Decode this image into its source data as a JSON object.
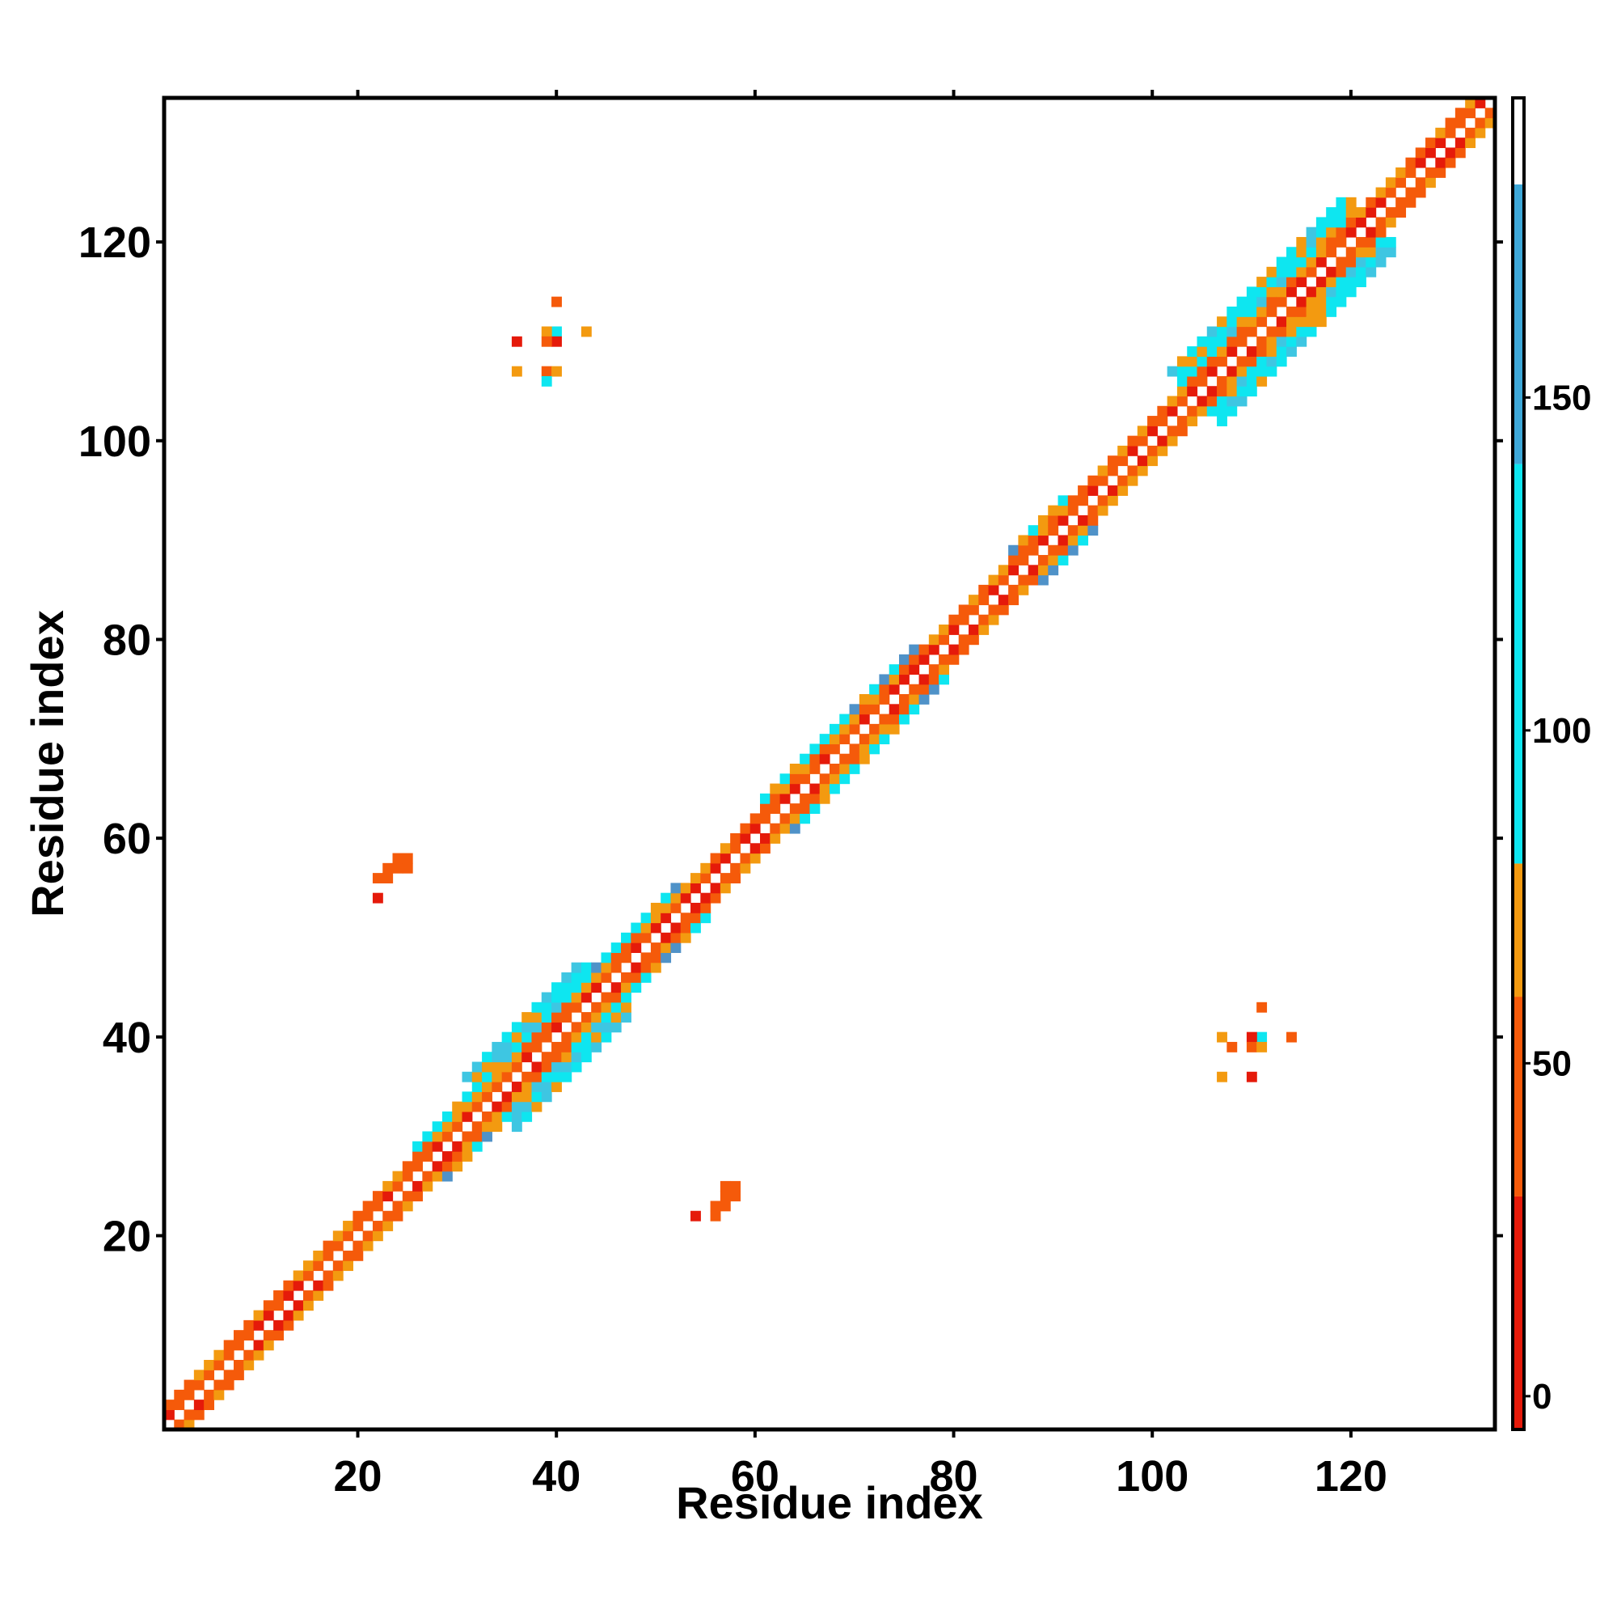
{
  "chart_data": {
    "type": "heatmap",
    "xlabel": "Residue index",
    "ylabel": "Residue index",
    "xlim": [
      1,
      134
    ],
    "ylim": [
      1,
      134
    ],
    "x_ticks": [
      20,
      40,
      60,
      80,
      100,
      120
    ],
    "y_ticks": [
      20,
      40,
      60,
      80,
      100,
      120
    ],
    "colorbar": {
      "range": [
        -5,
        195
      ],
      "ticks": [
        0,
        50,
        100,
        150
      ],
      "bands": [
        {
          "from": -5,
          "to": 30,
          "color": "#e51a0a"
        },
        {
          "from": 30,
          "to": 60,
          "color": "#f55a0a"
        },
        {
          "from": 60,
          "to": 80,
          "color": "#f39a10"
        },
        {
          "from": 80,
          "to": 140,
          "color": "#0ee6f0"
        },
        {
          "from": 140,
          "to": 182,
          "color": "#3ea8d8"
        },
        {
          "from": 182,
          "to": 195,
          "color": "#ffffff"
        }
      ]
    },
    "colors": {
      "red": "#e51a0a",
      "orange_red": "#f55a0a",
      "orange": "#f39a10",
      "cyan": "#0ee6f0",
      "sky": "#3ec6e2",
      "steel": "#4f92c8"
    },
    "diagonal_band": {
      "segments": [
        {
          "from": 1,
          "to": 10,
          "half_width": 2
        },
        {
          "from": 10,
          "to": 18,
          "half_width": 2
        },
        {
          "from": 18,
          "to": 27,
          "half_width": 2
        },
        {
          "from": 27,
          "to": 33,
          "half_width": 3
        },
        {
          "from": 33,
          "to": 45,
          "half_width": 5
        },
        {
          "from": 45,
          "to": 54,
          "half_width": 3
        },
        {
          "from": 54,
          "to": 62,
          "half_width": 2
        },
        {
          "from": 62,
          "to": 70,
          "half_width": 3
        },
        {
          "from": 70,
          "to": 78,
          "half_width": 3
        },
        {
          "from": 78,
          "to": 87,
          "half_width": 2
        },
        {
          "from": 87,
          "to": 93,
          "half_width": 3
        },
        {
          "from": 93,
          "to": 104,
          "half_width": 2
        },
        {
          "from": 104,
          "to": 122,
          "half_width": 5
        },
        {
          "from": 122,
          "to": 134,
          "half_width": 2
        }
      ]
    },
    "contacts": [
      {
        "x": 22,
        "y": 56,
        "v": 40
      },
      {
        "x": 23,
        "y": 56,
        "v": 40
      },
      {
        "x": 24,
        "y": 57,
        "v": 40
      },
      {
        "x": 23,
        "y": 57,
        "v": 40
      },
      {
        "x": 25,
        "y": 58,
        "v": 40
      },
      {
        "x": 24,
        "y": 58,
        "v": 40
      },
      {
        "x": 22,
        "y": 54,
        "v": 20
      },
      {
        "x": 25,
        "y": 57,
        "v": 45
      },
      {
        "x": 56,
        "y": 22,
        "v": 40
      },
      {
        "x": 56,
        "y": 23,
        "v": 40
      },
      {
        "x": 57,
        "y": 24,
        "v": 40
      },
      {
        "x": 57,
        "y": 23,
        "v": 40
      },
      {
        "x": 58,
        "y": 25,
        "v": 40
      },
      {
        "x": 58,
        "y": 24,
        "v": 40
      },
      {
        "x": 54,
        "y": 22,
        "v": 20
      },
      {
        "x": 57,
        "y": 25,
        "v": 45
      },
      {
        "x": 40,
        "y": 114,
        "v": 45
      },
      {
        "x": 40,
        "y": 111,
        "v": 110
      },
      {
        "x": 39,
        "y": 111,
        "v": 65
      },
      {
        "x": 40,
        "y": 110,
        "v": 10
      },
      {
        "x": 39,
        "y": 110,
        "v": 45
      },
      {
        "x": 36,
        "y": 110,
        "v": 10
      },
      {
        "x": 43,
        "y": 111,
        "v": 70
      },
      {
        "x": 36,
        "y": 107,
        "v": 70
      },
      {
        "x": 39,
        "y": 107,
        "v": 45
      },
      {
        "x": 40,
        "y": 107,
        "v": 70
      },
      {
        "x": 39,
        "y": 106,
        "v": 110
      },
      {
        "x": 111,
        "y": 43,
        "v": 45
      },
      {
        "x": 111,
        "y": 40,
        "v": 110
      },
      {
        "x": 110,
        "y": 40,
        "v": 10
      },
      {
        "x": 107,
        "y": 40,
        "v": 70
      },
      {
        "x": 108,
        "y": 39,
        "v": 45
      },
      {
        "x": 110,
        "y": 39,
        "v": 45
      },
      {
        "x": 111,
        "y": 39,
        "v": 65
      },
      {
        "x": 114,
        "y": 40,
        "v": 45
      },
      {
        "x": 107,
        "y": 36,
        "v": 70
      },
      {
        "x": 110,
        "y": 36,
        "v": 10
      }
    ]
  }
}
